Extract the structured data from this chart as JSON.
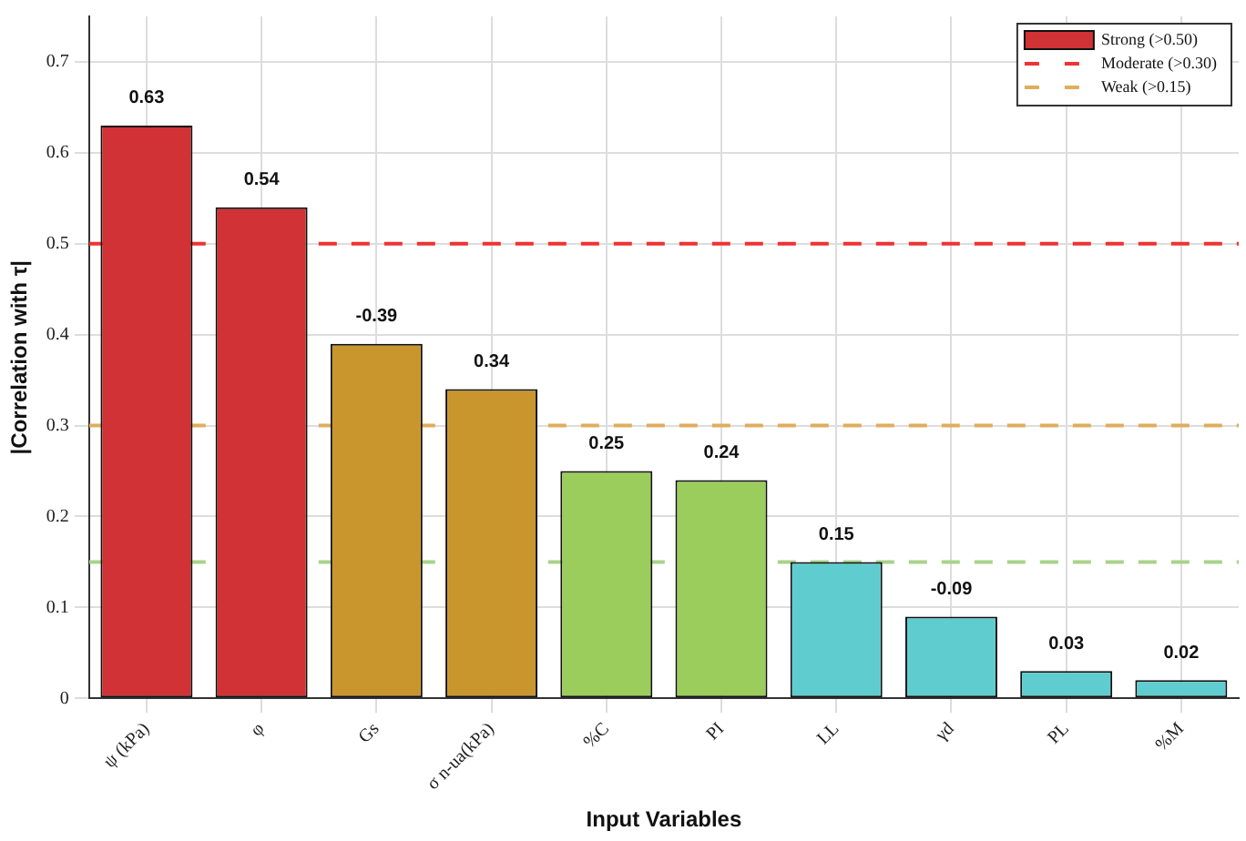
{
  "chart_data": {
    "type": "bar",
    "xlabel": "Input Variables",
    "ylabel": "|Correlation with τ|",
    "categories": [
      "ψ (kPa)",
      "φ",
      "Gs",
      "σ n-ua(kPa)",
      "%C",
      "PI",
      "LL",
      "γd",
      "PL",
      "%M"
    ],
    "series": [
      {
        "name": "Strong (>0.50)",
        "color": "#d03235",
        "values": [
          0.63,
          0.54,
          null,
          null,
          null,
          null,
          null,
          null,
          null,
          null
        ],
        "value_labels": [
          "0.63",
          "0.54",
          null,
          null,
          null,
          null,
          null,
          null,
          null,
          null
        ]
      },
      {
        "color": "#c9962e",
        "values": [
          null,
          null,
          0.39,
          0.34,
          null,
          null,
          null,
          null,
          null,
          null
        ],
        "value_labels": [
          null,
          null,
          null,
          "0.34",
          null,
          null,
          null,
          null,
          null,
          null
        ]
      },
      {
        "color": "#9acd5c",
        "values": [
          null,
          null,
          null,
          null,
          0.25,
          0.24,
          null,
          null,
          null,
          null
        ],
        "value_labels": [
          null,
          null,
          null,
          null,
          "0.25",
          "0.24",
          null,
          null,
          null,
          null
        ]
      },
      {
        "color": "#5fcdcf",
        "values": [
          null,
          null,
          null,
          null,
          null,
          null,
          0.15,
          0.09,
          0.03,
          0.02
        ],
        "value_labels": [
          null,
          null,
          null,
          null,
          null,
          null,
          "0.15",
          null,
          "0.03",
          "0.02"
        ]
      }
    ],
    "annotations": [
      {
        "text": "-0.39",
        "x": "Gs",
        "y": 0.39
      },
      {
        "text": "-0.09",
        "x": "γd",
        "y": 0.09
      }
    ],
    "ylim": [
      0,
      0.75
    ],
    "yticks": [
      0,
      0.1,
      0.2,
      0.3,
      0.4,
      0.5,
      0.6,
      0.7
    ],
    "ref_lines": [
      {
        "axis": "y",
        "value": 0.5,
        "label": "Moderate (>0.30)",
        "color": "#ee3333",
        "line_style": "dashed"
      },
      {
        "axis": "y",
        "value": 0.3,
        "label": "Weak (>0.15)",
        "color": "#e0ad5c",
        "line_style": "dashed"
      },
      {
        "axis": "y",
        "value": 0.15,
        "color": "#a9d28a",
        "line_style": "dashed"
      }
    ],
    "grid": true,
    "legend": "top right"
  }
}
